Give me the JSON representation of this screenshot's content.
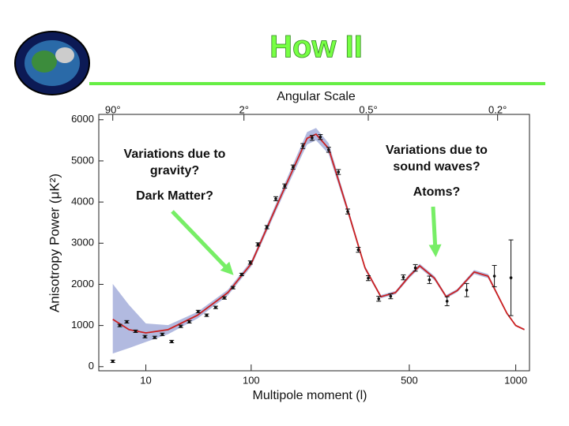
{
  "chart_data": {
    "type": "scatter",
    "title": "How II",
    "xlabel": "Multipole moment (l)",
    "ylabel": "Anisotropy Power (μK²)",
    "x2label": "Angular Scale",
    "xscale": "power",
    "xpower": 0.4,
    "xlim": [
      0.6,
      1080
    ],
    "ylim": [
      -100,
      6130
    ],
    "xticks": [
      10,
      100,
      500,
      1000
    ],
    "yticks": [
      0,
      1000,
      2000,
      3000,
      4000,
      5000,
      6000
    ],
    "x2ticks": [
      {
        "value": 2,
        "label": "90°"
      },
      {
        "value": 90,
        "label": "2°"
      },
      {
        "value": 360,
        "label": "0.5°"
      },
      {
        "value": 900,
        "label": "0.2°"
      }
    ],
    "annotations": [
      "Variations due to gravity?",
      "Dark Matter?",
      "Variations due to sound waves?",
      "Atoms?"
    ],
    "band": {
      "color": "#aab2dd",
      "x": [
        2,
        5,
        10,
        20,
        40,
        70,
        100,
        150,
        200,
        220,
        250,
        300,
        350,
        400,
        450,
        500,
        540,
        600,
        650,
        700,
        780,
        850,
        950,
        1000,
        1050
      ],
      "lower": [
        320,
        450,
        600,
        790,
        1170,
        1730,
        2430,
        4100,
        5400,
        5500,
        5170,
        3720,
        2350,
        1660,
        1760,
        2150,
        2400,
        2100,
        1660,
        1810,
        2250,
        2150,
        1270,
        980,
        880
      ],
      "upper": [
        2010,
        1500,
        1050,
        1010,
        1330,
        1870,
        2570,
        4300,
        5700,
        5800,
        5430,
        3880,
        2450,
        1740,
        1840,
        2250,
        2500,
        2200,
        1740,
        1890,
        2350,
        2250,
        1330,
        1020,
        920
      ]
    },
    "model": {
      "color": "#cc2020",
      "x": [
        2,
        5,
        10,
        20,
        40,
        70,
        100,
        150,
        200,
        220,
        250,
        300,
        350,
        400,
        450,
        500,
        540,
        600,
        650,
        700,
        780,
        850,
        950,
        1000,
        1050
      ],
      "values": [
        1150,
        900,
        820,
        900,
        1250,
        1800,
        2500,
        4200,
        5550,
        5650,
        5300,
        3800,
        2400,
        1700,
        1800,
        2200,
        2450,
        2150,
        1700,
        1850,
        2300,
        2200,
        1300,
        1000,
        900
      ]
    },
    "data": {
      "color": "#111111",
      "x": [
        2,
        3.1,
        4.5,
        6.7,
        9.7,
        13.5,
        17,
        22,
        27.6,
        33.6,
        40.6,
        48,
        56.7,
        66,
        76,
        87,
        98.8,
        110,
        124,
        139,
        155,
        171,
        191,
        211,
        230,
        250,
        275,
        300,
        330,
        360,
        393,
        433,
        478,
        523,
        579,
        654,
        744,
        883,
        973
      ],
      "values": [
        130,
        1000,
        1090,
        860,
        730,
        710,
        785,
        610,
        980,
        1090,
        1340,
        1250,
        1440,
        1670,
        1920,
        2240,
        2530,
        2970,
        3390,
        4080,
        4390,
        4850,
        5360,
        5560,
        5580,
        5270,
        4730,
        3770,
        2840,
        2150,
        1650,
        1710,
        2170,
        2400,
        2110,
        1590,
        1860,
        2200,
        2160
      ],
      "errors": [
        30,
        30,
        30,
        30,
        30,
        30,
        30,
        30,
        30,
        30,
        30,
        30,
        30,
        30,
        30,
        30,
        40,
        40,
        40,
        50,
        50,
        50,
        60,
        60,
        60,
        60,
        60,
        60,
        60,
        60,
        60,
        60,
        60,
        80,
        90,
        110,
        160,
        260,
        920
      ]
    }
  }
}
